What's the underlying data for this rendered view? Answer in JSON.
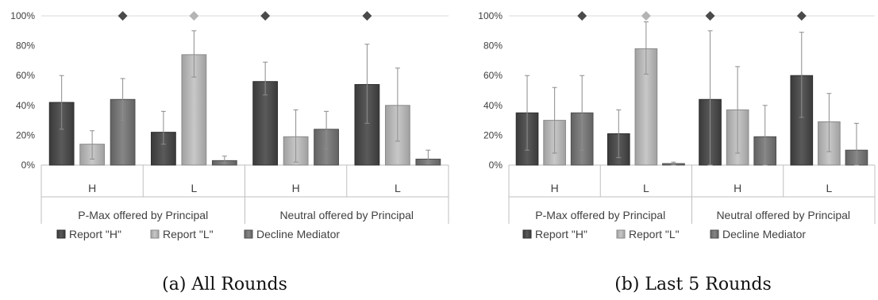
{
  "colors": {
    "report_h": "#4a4a4a",
    "report_l": "#b4b4b4",
    "decline": "#747474",
    "marker_dark": "#4a4a4a",
    "marker_light": "#b4b4b4",
    "axis": "#bfbfbf",
    "error_bar": "#8c8c8c"
  },
  "chart_data": [
    {
      "type": "bar",
      "caption": "(a) All Rounds",
      "ylim": [
        0,
        100
      ],
      "yticks": [
        "0%",
        "20%",
        "40%",
        "60%",
        "80%",
        "100%"
      ],
      "categories": [
        "H",
        "L",
        "H",
        "L"
      ],
      "groups": [
        "P-Max offered by Principal",
        "Neutral offered by Principal"
      ],
      "series": [
        {
          "name": "Report \"H\"",
          "values": [
            42,
            22,
            56,
            54
          ],
          "err_low": [
            24,
            14,
            47,
            28
          ],
          "err_high": [
            60,
            36,
            69,
            81
          ]
        },
        {
          "name": "Report \"L\"",
          "values": [
            14,
            74,
            19,
            40
          ],
          "err_low": [
            4,
            59,
            2,
            16
          ],
          "err_high": [
            23,
            90,
            37,
            65
          ]
        },
        {
          "name": "Decline Mediator",
          "values": [
            44,
            3,
            24,
            4
          ],
          "err_low": [
            30,
            1,
            11,
            1
          ],
          "err_high": [
            58,
            6,
            36,
            10
          ]
        }
      ],
      "markers": [
        {
          "category_index": 0,
          "series_index": 2,
          "value": 100,
          "shade": "dark"
        },
        {
          "category_index": 1,
          "series_index": 1,
          "value": 100,
          "shade": "light"
        },
        {
          "category_index": 2,
          "series_index": 0,
          "value": 100,
          "shade": "dark"
        },
        {
          "category_index": 3,
          "series_index": 0,
          "value": 100,
          "shade": "dark"
        }
      ],
      "legend": [
        "Report \"H\"",
        "Report \"L\"",
        "Decline Mediator"
      ],
      "legend_position": "bottom"
    },
    {
      "type": "bar",
      "caption": "(b) Last 5 Rounds",
      "ylim": [
        0,
        100
      ],
      "yticks": [
        "0%",
        "20%",
        "40%",
        "60%",
        "80%",
        "100%"
      ],
      "categories": [
        "H",
        "L",
        "H",
        "L"
      ],
      "groups": [
        "P-Max offered by Principal",
        "Neutral offered by Principal"
      ],
      "series": [
        {
          "name": "Report \"H\"",
          "values": [
            35,
            21,
            44,
            60
          ],
          "err_low": [
            10,
            5,
            0,
            32
          ],
          "err_high": [
            60,
            37,
            90,
            89
          ]
        },
        {
          "name": "Report \"L\"",
          "values": [
            30,
            78,
            37,
            29
          ],
          "err_low": [
            8,
            61,
            8,
            9
          ],
          "err_high": [
            52,
            96,
            66,
            48
          ]
        },
        {
          "name": "Decline Mediator",
          "values": [
            35,
            1,
            19,
            10
          ],
          "err_low": [
            10,
            0,
            0,
            0
          ],
          "err_high": [
            60,
            2,
            40,
            28
          ]
        }
      ],
      "markers": [
        {
          "category_index": 0,
          "series_index": 2,
          "value": 100,
          "shade": "dark"
        },
        {
          "category_index": 1,
          "series_index": 1,
          "value": 100,
          "shade": "light"
        },
        {
          "category_index": 2,
          "series_index": 0,
          "value": 100,
          "shade": "dark"
        },
        {
          "category_index": 3,
          "series_index": 0,
          "value": 100,
          "shade": "dark"
        }
      ],
      "legend": [
        "Report \"H\"",
        "Report \"L\"",
        "Decline Mediator"
      ],
      "legend_position": "bottom"
    }
  ]
}
